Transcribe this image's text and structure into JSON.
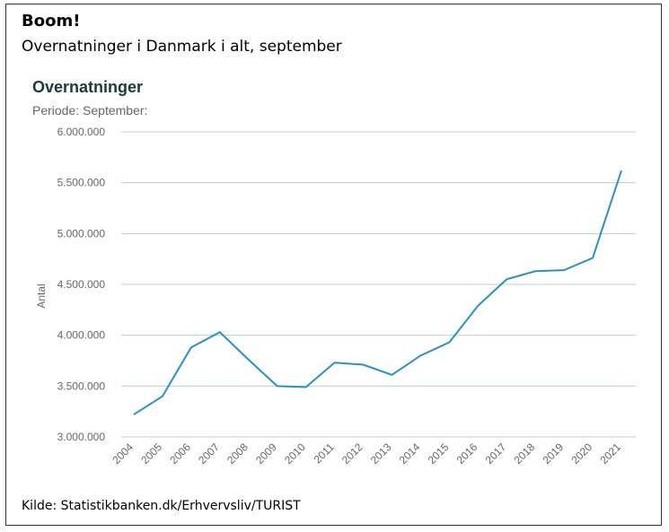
{
  "header": {
    "headline": "Boom!",
    "subheadline": "Overnatninger i Danmark i alt, september"
  },
  "footer": {
    "source": "Kilde: Statistikbanken.dk/Erhvervsliv/TURIST"
  },
  "chart_data": {
    "type": "line",
    "title": "Overnatninger",
    "subtitle": "Periode: September:",
    "xlabel": "",
    "ylabel": "Antal",
    "ylim": [
      3000000,
      6000000
    ],
    "yticks": [
      {
        "value": 6000000,
        "label": "6.000.000"
      },
      {
        "value": 5500000,
        "label": "5.500.000"
      },
      {
        "value": 5000000,
        "label": "5.000.000"
      },
      {
        "value": 4500000,
        "label": "4.500.000"
      },
      {
        "value": 4000000,
        "label": "4.000.000"
      },
      {
        "value": 3500000,
        "label": "3.500.000"
      },
      {
        "value": 3000000,
        "label": "3.000.000"
      }
    ],
    "grid": true,
    "legend": "none",
    "color": "#2b92c0",
    "categories": [
      "2004",
      "2005",
      "2006",
      "2007",
      "2008",
      "2009",
      "2010",
      "2011",
      "2012",
      "2013",
      "2014",
      "2015",
      "2016",
      "2017",
      "2018",
      "2019",
      "2020",
      "2021"
    ],
    "series": [
      {
        "values": [
          3220000,
          3400000,
          3880000,
          4030000,
          3760000,
          3500000,
          3490000,
          3730000,
          3710000,
          3610000,
          3800000,
          3930000,
          4290000,
          4550000,
          4630000,
          4640000,
          4760000,
          5620000
        ]
      }
    ]
  }
}
